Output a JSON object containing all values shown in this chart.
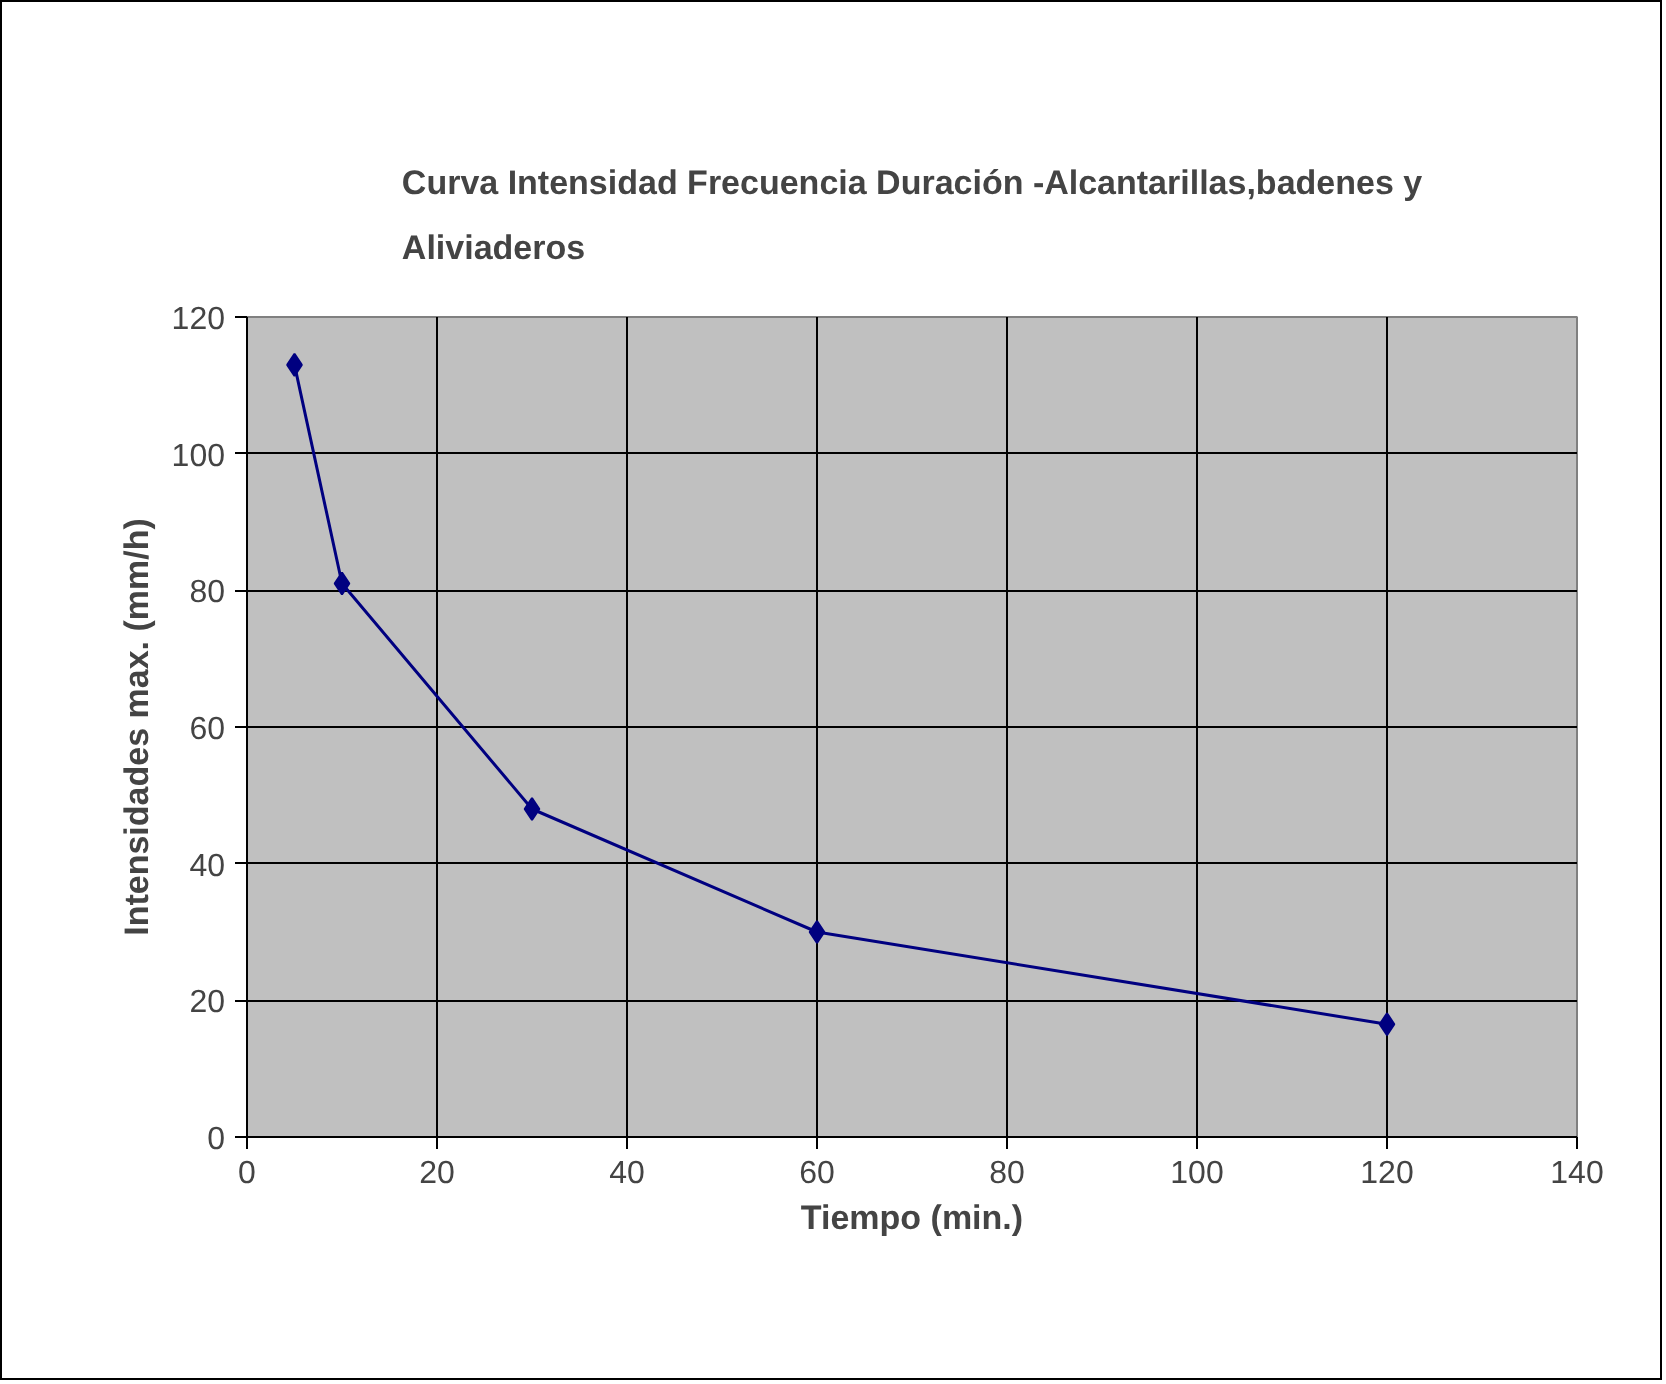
{
  "chart_data": {
    "type": "line",
    "title": "Curva Intensidad Frecuencia Duración -Alcantarillas,badenes y Aliviaderos",
    "xlabel": "Tiempo (min.)",
    "ylabel": "Intensidades max. (mm/h)",
    "x": [
      5,
      10,
      30,
      60,
      120
    ],
    "series": [
      {
        "color": "#000080",
        "values": [
          113,
          81,
          48,
          30,
          16.5
        ]
      }
    ],
    "xlim": [
      0,
      140
    ],
    "ylim": [
      0,
      120
    ],
    "xticks": [
      0,
      20,
      40,
      60,
      80,
      100,
      120,
      140
    ],
    "yticks": [
      0,
      20,
      40,
      60,
      80,
      100,
      120
    ],
    "grid": true,
    "marker": "diamond",
    "line_style": "solid"
  }
}
